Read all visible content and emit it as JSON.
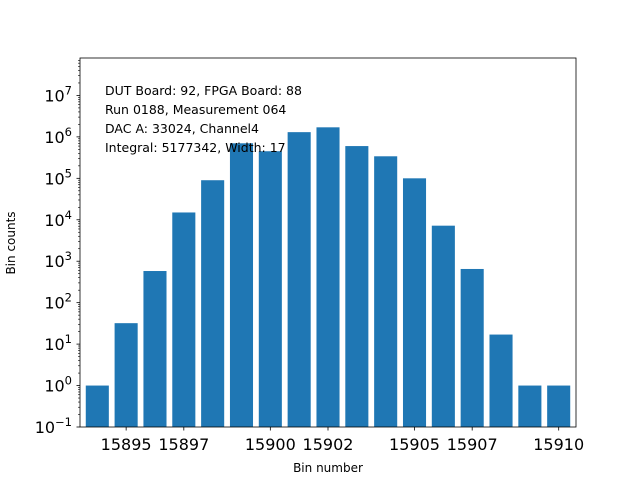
{
  "chart_data": {
    "type": "bar",
    "title": "",
    "xlabel": "Bin number",
    "ylabel": "Bin counts",
    "yscale": "log",
    "ylim": [
      0.1,
      80000000
    ],
    "xlim": [
      15893.4,
      15910.6
    ],
    "bar_color": "#1f77b4",
    "categories": [
      15894,
      15895,
      15896,
      15897,
      15898,
      15899,
      15900,
      15901,
      15902,
      15903,
      15904,
      15905,
      15906,
      15907,
      15908,
      15909,
      15910
    ],
    "values": [
      1,
      32,
      580,
      15000,
      90000,
      700000,
      450000,
      1300000,
      1700000,
      600000,
      340000,
      100000,
      7200,
      650,
      17,
      1,
      1
    ],
    "xticks": [
      {
        "value": 15895,
        "label": "15895"
      },
      {
        "value": 15897,
        "label": "15897"
      },
      {
        "value": 15900,
        "label": "15900"
      },
      {
        "value": 15902,
        "label": "15902"
      },
      {
        "value": 15905,
        "label": "15905"
      },
      {
        "value": 15907,
        "label": "15907"
      },
      {
        "value": 15910,
        "label": "15910"
      }
    ],
    "yticks": [
      {
        "exp": -1,
        "base": "10",
        "power": "−1"
      },
      {
        "exp": 0,
        "base": "10",
        "power": "0"
      },
      {
        "exp": 1,
        "base": "10",
        "power": "1"
      },
      {
        "exp": 2,
        "base": "10",
        "power": "2"
      },
      {
        "exp": 3,
        "base": "10",
        "power": "3"
      },
      {
        "exp": 4,
        "base": "10",
        "power": "4"
      },
      {
        "exp": 5,
        "base": "10",
        "power": "5"
      },
      {
        "exp": 6,
        "base": "10",
        "power": "6"
      },
      {
        "exp": 7,
        "base": "10",
        "power": "7"
      }
    ],
    "annotations": [
      "DUT Board: 92, FPGA Board: 88",
      "Run 0188, Measurement 064",
      "DAC A: 33024, Channel4",
      "Integral: 5177342, Width: 17"
    ]
  }
}
